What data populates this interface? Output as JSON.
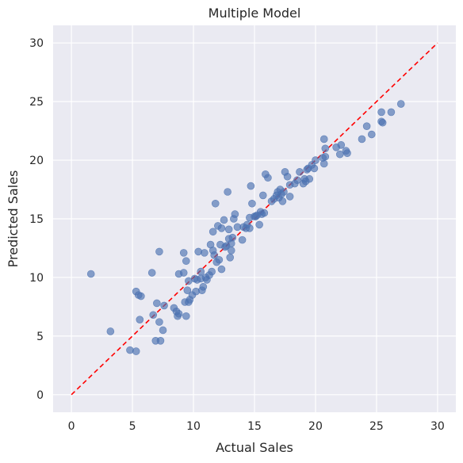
{
  "chart_data": {
    "type": "scatter",
    "title": "Multiple Model",
    "xlabel": "Actual Sales",
    "ylabel": "Predicted Sales",
    "xlim": [
      -1.5,
      31.5
    ],
    "ylim": [
      -1.5,
      31.5
    ],
    "xticks": [
      0,
      5,
      10,
      15,
      20,
      25,
      30
    ],
    "yticks": [
      0,
      5,
      10,
      15,
      20,
      25,
      30
    ],
    "grid": true,
    "point_color": "#4c72b0",
    "point_alpha": 0.65,
    "reference_line": {
      "from": [
        0,
        0
      ],
      "to": [
        30,
        30
      ],
      "color": "#ff0000",
      "style": "dashed"
    },
    "points": [
      [
        1.6,
        10.3
      ],
      [
        3.2,
        5.4
      ],
      [
        4.8,
        3.8
      ],
      [
        5.3,
        3.7
      ],
      [
        5.3,
        8.8
      ],
      [
        5.5,
        8.5
      ],
      [
        5.6,
        6.4
      ],
      [
        5.7,
        8.4
      ],
      [
        6.6,
        10.4
      ],
      [
        6.7,
        6.8
      ],
      [
        6.9,
        4.6
      ],
      [
        7.0,
        7.8
      ],
      [
        7.2,
        12.2
      ],
      [
        7.2,
        6.2
      ],
      [
        7.3,
        4.6
      ],
      [
        7.5,
        5.5
      ],
      [
        7.6,
        7.6
      ],
      [
        8.4,
        7.4
      ],
      [
        8.6,
        7.1
      ],
      [
        8.7,
        6.7
      ],
      [
        8.8,
        6.9
      ],
      [
        8.8,
        10.3
      ],
      [
        9.2,
        10.4
      ],
      [
        9.2,
        12.1
      ],
      [
        9.3,
        7.9
      ],
      [
        9.4,
        11.4
      ],
      [
        9.4,
        6.7
      ],
      [
        9.5,
        8.9
      ],
      [
        9.6,
        9.7
      ],
      [
        9.6,
        7.9
      ],
      [
        9.7,
        8.1
      ],
      [
        9.9,
        8.5
      ],
      [
        10.1,
        9.9
      ],
      [
        10.2,
        8.8
      ],
      [
        10.3,
        9.8
      ],
      [
        10.4,
        12.2
      ],
      [
        10.6,
        10.5
      ],
      [
        10.6,
        9.9
      ],
      [
        10.7,
        8.9
      ],
      [
        10.8,
        9.2
      ],
      [
        10.9,
        12.1
      ],
      [
        11.0,
        10.0
      ],
      [
        11.1,
        9.8
      ],
      [
        11.3,
        10.2
      ],
      [
        11.4,
        12.8
      ],
      [
        11.5,
        10.5
      ],
      [
        11.6,
        13.9
      ],
      [
        11.6,
        12.3
      ],
      [
        11.7,
        11.9
      ],
      [
        11.8,
        16.3
      ],
      [
        11.9,
        11.3
      ],
      [
        12.0,
        14.4
      ],
      [
        12.1,
        11.5
      ],
      [
        12.2,
        12.8
      ],
      [
        12.3,
        14.2
      ],
      [
        12.3,
        10.7
      ],
      [
        12.5,
        14.9
      ],
      [
        12.6,
        12.6
      ],
      [
        12.7,
        12.7
      ],
      [
        12.8,
        17.3
      ],
      [
        12.9,
        14.1
      ],
      [
        12.9,
        13.3
      ],
      [
        13.0,
        11.7
      ],
      [
        13.1,
        12.3
      ],
      [
        13.1,
        12.9
      ],
      [
        13.2,
        13.4
      ],
      [
        13.3,
        15.0
      ],
      [
        13.4,
        15.4
      ],
      [
        13.6,
        14.3
      ],
      [
        14.0,
        13.2
      ],
      [
        14.1,
        14.3
      ],
      [
        14.3,
        14.2
      ],
      [
        14.4,
        14.5
      ],
      [
        14.6,
        15.1
      ],
      [
        14.6,
        14.2
      ],
      [
        14.7,
        17.8
      ],
      [
        14.8,
        16.3
      ],
      [
        15.0,
        15.2
      ],
      [
        15.1,
        15.2
      ],
      [
        15.2,
        15.3
      ],
      [
        15.4,
        14.5
      ],
      [
        15.5,
        15.6
      ],
      [
        15.6,
        15.4
      ],
      [
        15.7,
        17.0
      ],
      [
        15.8,
        15.5
      ],
      [
        15.9,
        18.8
      ],
      [
        16.1,
        18.5
      ],
      [
        16.4,
        16.5
      ],
      [
        16.6,
        16.7
      ],
      [
        16.8,
        17.0
      ],
      [
        16.9,
        17.3
      ],
      [
        17.0,
        16.8
      ],
      [
        17.1,
        17.5
      ],
      [
        17.2,
        17.1
      ],
      [
        17.3,
        16.5
      ],
      [
        17.4,
        17.3
      ],
      [
        17.5,
        19.0
      ],
      [
        17.7,
        18.6
      ],
      [
        17.9,
        17.9
      ],
      [
        17.9,
        16.9
      ],
      [
        18.3,
        18.0
      ],
      [
        18.5,
        18.3
      ],
      [
        18.7,
        19.0
      ],
      [
        19.0,
        18.0
      ],
      [
        19.1,
        18.4
      ],
      [
        19.2,
        18.2
      ],
      [
        19.3,
        19.2
      ],
      [
        19.4,
        19.3
      ],
      [
        19.5,
        18.4
      ],
      [
        19.7,
        19.6
      ],
      [
        19.9,
        19.3
      ],
      [
        20.0,
        20.0
      ],
      [
        20.6,
        20.2
      ],
      [
        20.7,
        21.8
      ],
      [
        20.7,
        19.7
      ],
      [
        20.8,
        21.0
      ],
      [
        20.8,
        20.3
      ],
      [
        21.7,
        21.1
      ],
      [
        22.0,
        20.5
      ],
      [
        22.1,
        21.3
      ],
      [
        22.5,
        20.8
      ],
      [
        22.6,
        20.6
      ],
      [
        23.8,
        21.8
      ],
      [
        24.2,
        22.9
      ],
      [
        24.6,
        22.2
      ],
      [
        25.4,
        24.1
      ],
      [
        25.4,
        23.3
      ],
      [
        25.5,
        23.2
      ],
      [
        26.2,
        24.1
      ],
      [
        27.0,
        24.8
      ]
    ]
  }
}
